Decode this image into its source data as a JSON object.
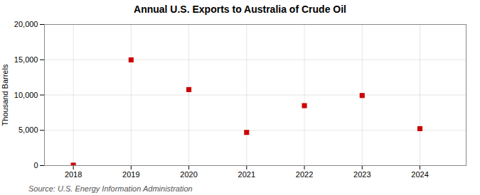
{
  "chart_data": {
    "type": "scatter",
    "title": "Annual U.S. Exports to Australia of Crude Oil",
    "ylabel": "Thousand Barrels",
    "annotation": "Source: U.S. Energy Information Administration",
    "x": [
      2018,
      2019,
      2020,
      2021,
      2022,
      2023,
      2024
    ],
    "values": [
      57,
      14980,
      10770,
      4700,
      8490,
      9930,
      5230
    ],
    "color": "#cc0000",
    "marker": "square",
    "xlim": [
      2017.5,
      2024.8
    ],
    "xticks": [
      2018,
      2019,
      2020,
      2021,
      2022,
      2023,
      2024
    ],
    "ylim": [
      0,
      20000
    ],
    "yticks": [
      0,
      {
        "value": 5000,
        "label": "5,000"
      },
      {
        "value": 10000,
        "label": "10,000"
      },
      {
        "value": 15000,
        "label": "15,000"
      },
      {
        "value": 20000,
        "label": "20,000"
      }
    ],
    "grid": true
  }
}
